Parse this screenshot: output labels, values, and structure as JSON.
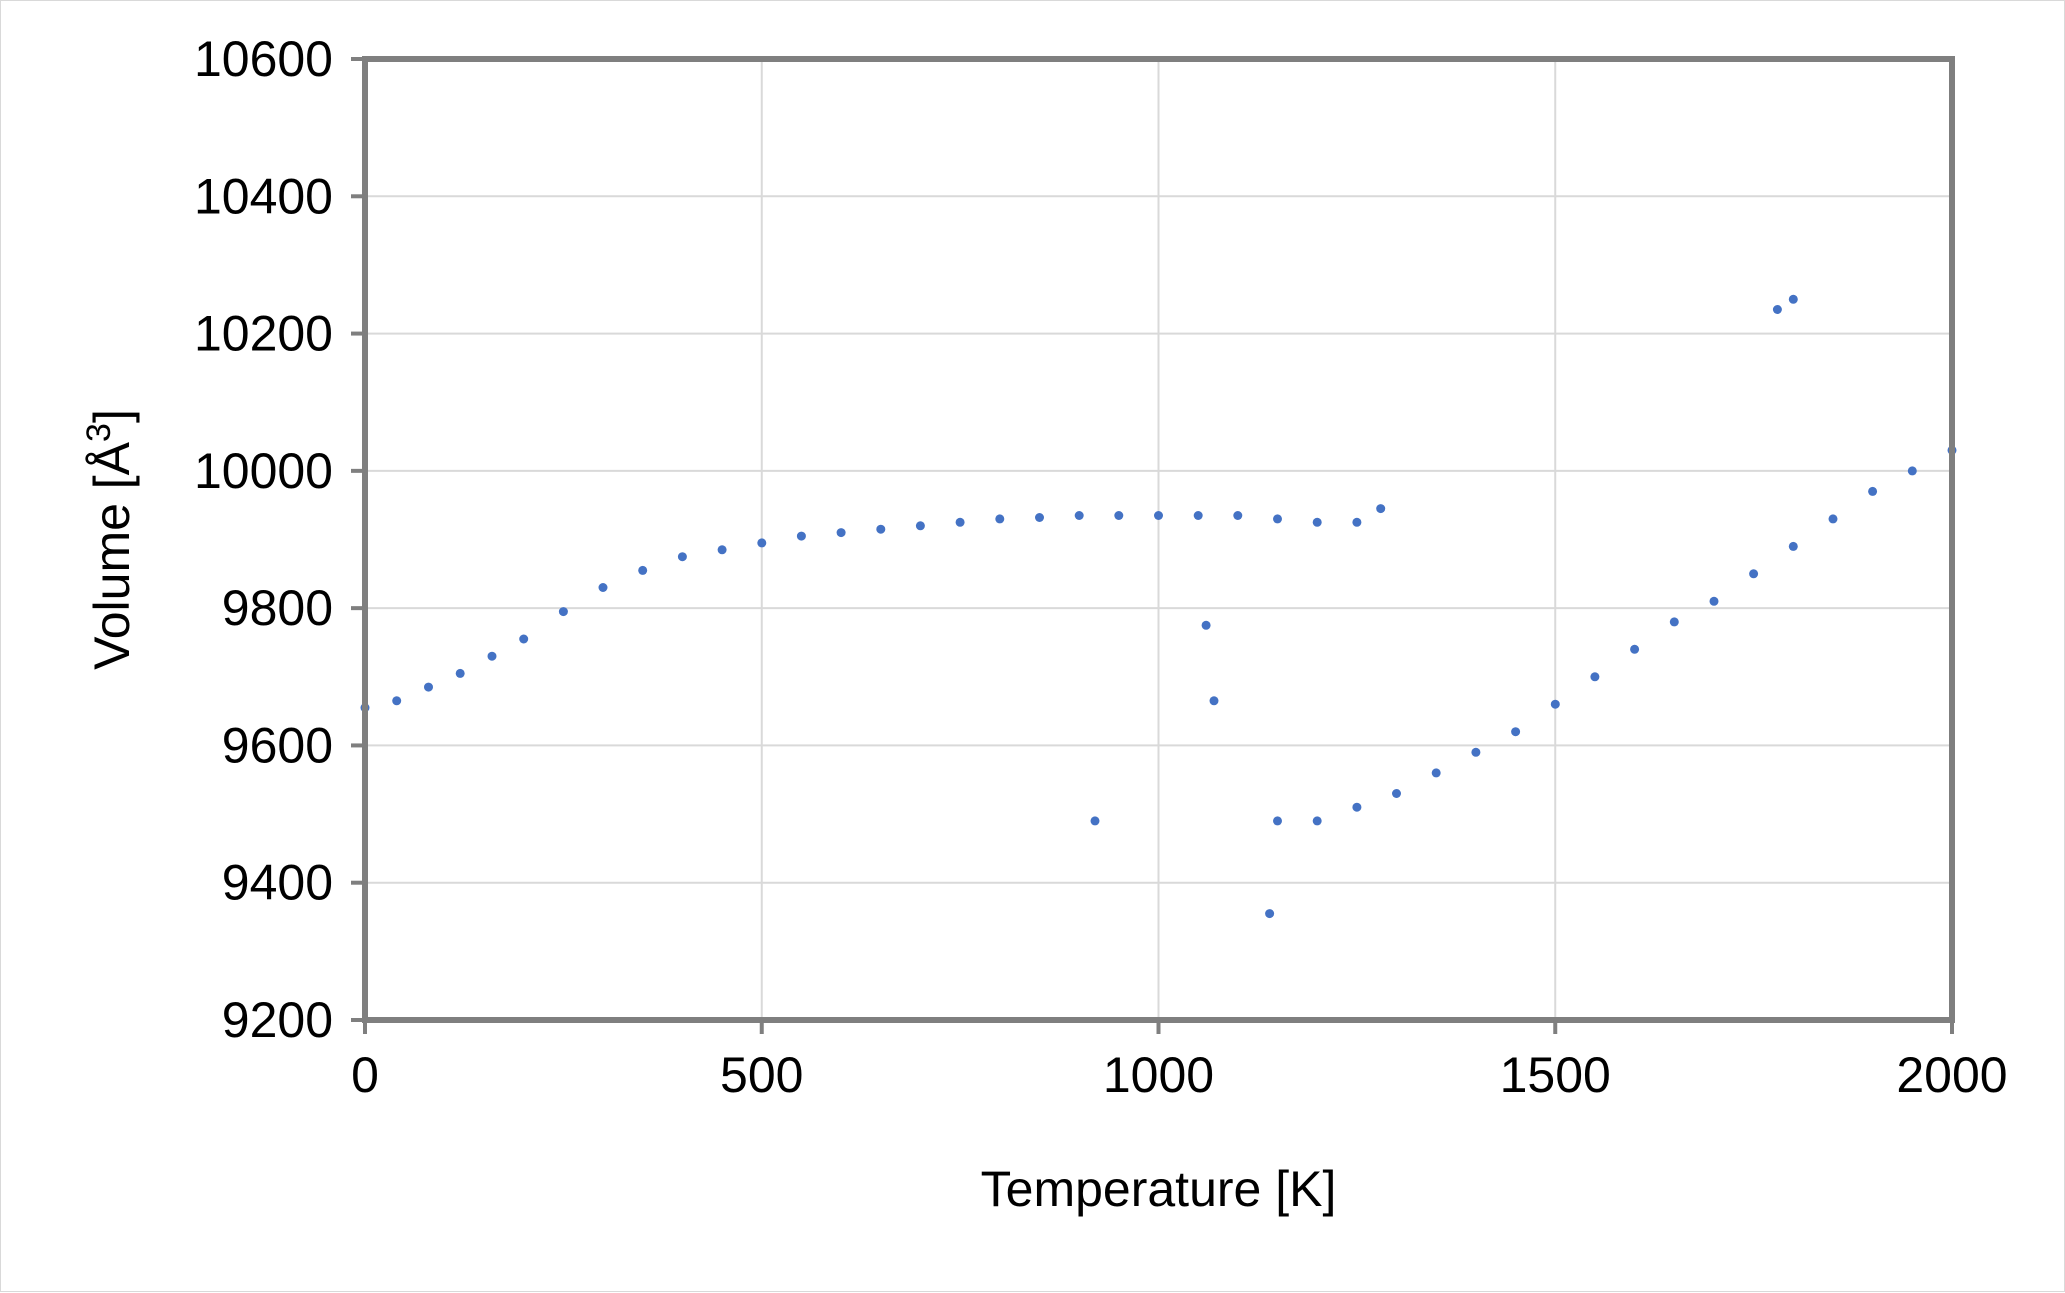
{
  "chart_data": {
    "type": "scatter",
    "title": "",
    "xlabel": "Temperature [K]",
    "ylabel": "Volume [Å³]",
    "ylabel_base": "Volume [",
    "ylabel_unit": "Å",
    "ylabel_sup": "3",
    "ylabel_close": "]",
    "xlim": [
      0,
      2000
    ],
    "ylim": [
      9200,
      10600
    ],
    "xticks": [
      0,
      500,
      1000,
      1500,
      2000
    ],
    "yticks": [
      9200,
      9400,
      9600,
      9800,
      10000,
      10200,
      10400,
      10600
    ],
    "xtick_labels": [
      "0",
      "500",
      "1000",
      "1500",
      "2000"
    ],
    "ytick_labels": [
      "9200",
      "9400",
      "9600",
      "9800",
      "10000",
      "10200",
      "10400",
      "10600"
    ],
    "grid": true,
    "legend": "none",
    "colors": {
      "marker": "#4472c4",
      "grid": "#d9d9d9",
      "plot_border": "#7f7f7f"
    },
    "series": [
      {
        "x": [
          0,
          40,
          80,
          120,
          160,
          200,
          250,
          300,
          350,
          400,
          450,
          500,
          550,
          600,
          650,
          700,
          750,
          800,
          850,
          900,
          950,
          1000,
          1050,
          1100,
          1150,
          1200,
          1250,
          1280,
          1150,
          1200,
          1250,
          1300,
          1350,
          1400,
          1450,
          1500,
          1550,
          1600,
          1650,
          1700,
          1750,
          1800,
          1850,
          1900,
          1950,
          2000,
          920,
          1060,
          1070,
          1140,
          1800,
          1780
        ],
        "y": [
          9655,
          9665,
          9685,
          9705,
          9730,
          9755,
          9795,
          9830,
          9855,
          9875,
          9885,
          9895,
          9905,
          9910,
          9915,
          9920,
          9925,
          9930,
          9932,
          9935,
          9935,
          9935,
          9935,
          9935,
          9930,
          9925,
          9925,
          9945,
          9490,
          9490,
          9510,
          9530,
          9560,
          9590,
          9620,
          9660,
          9700,
          9740,
          9780,
          9810,
          9850,
          9890,
          9930,
          9970,
          10000,
          10030,
          9490,
          9775,
          9665,
          9355,
          10250,
          10235
        ]
      }
    ]
  }
}
